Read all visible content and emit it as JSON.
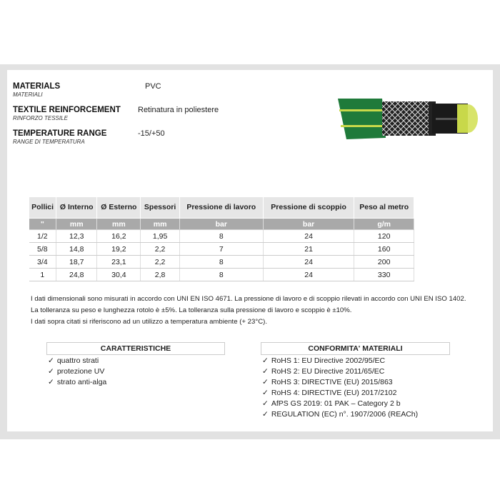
{
  "specs": [
    {
      "label": "MATERIALS",
      "sub": "MATERIALI",
      "value": "PVC"
    },
    {
      "label": "TEXTILE REINFORCEMENT",
      "sub": "RINFORZO TESSILE",
      "value": "Retinatura in poliestere"
    },
    {
      "label": "TEMPERATURE RANGE",
      "sub": "RANGE DI TEMPERATURA",
      "value": "-15/+50"
    }
  ],
  "table": {
    "headers": [
      "Pollici",
      "Ø Interno",
      "Ø Esterno",
      "Spessori",
      "Pressione di lavoro",
      "Pressione di scoppio",
      "Peso al metro"
    ],
    "units": [
      "\"",
      "mm",
      "mm",
      "mm",
      "bar",
      "bar",
      "g/m"
    ],
    "rows": [
      [
        "1/2",
        "12,3",
        "16,2",
        "1,95",
        "8",
        "24",
        "120"
      ],
      [
        "5/8",
        "14,8",
        "19,2",
        "2,2",
        "7",
        "21",
        "160"
      ],
      [
        "3/4",
        "18,7",
        "23,1",
        "2,2",
        "8",
        "24",
        "200"
      ],
      [
        "1",
        "24,8",
        "30,4",
        "2,8",
        "8",
        "24",
        "330"
      ]
    ]
  },
  "notes": [
    "I dati dimensionali sono misurati in accordo con UNI EN ISO 4671. La pressione di lavoro e di scoppio rilevati in accordo con UNI EN ISO 1402.",
    "La tolleranza su peso e lunghezza rotolo è ±5%. La tolleranza sulla pressione di lavoro e scoppio è ±10%.",
    "I dati sopra citati si riferiscono ad un utilizzo a temperatura ambiente (+ 23°C)."
  ],
  "caratteristiche": {
    "title": "CARATTERISTICHE",
    "items": [
      "quattro strati",
      "protezione UV",
      "strato anti-alga"
    ]
  },
  "conformita": {
    "title": "CONFORMITA' MATERIALI",
    "items": [
      "RoHS 1: EU Directive 2002/95/EC",
      "RoHS 2: EU Directive 2011/65/EC",
      "RoHS 3: DIRECTIVE (EU) 2015/863",
      "RoHS 4: DIRECTIVE (EU) 2017/2102",
      "AfPS GS 2019: 01 PAK – Category 2 b",
      "REGULATION (EC) n°. 1907/2006 (REACh)"
    ]
  },
  "check_icon": "✓",
  "colors": {
    "hose_green": "#1f7a3a",
    "hose_yellow": "#c8d84a",
    "unit_row": "#a9a9a9"
  }
}
